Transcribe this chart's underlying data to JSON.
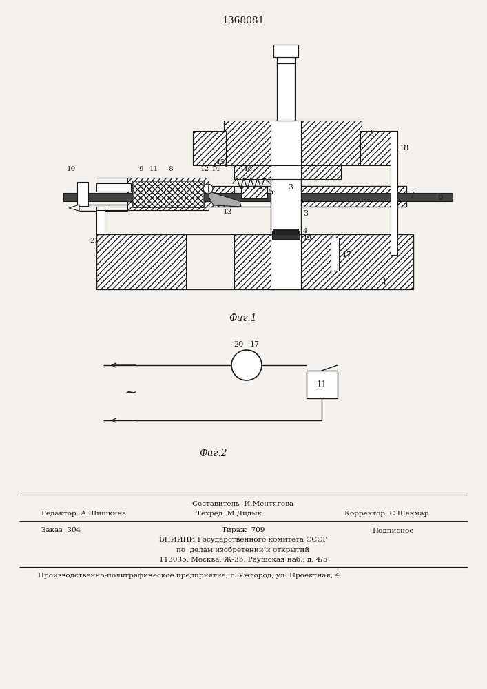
{
  "title": "1368081",
  "fig1_caption": "Фиг.1",
  "fig2_caption": "Фиг.2",
  "bg_color": "#f5f2ed",
  "line_color": "#1a1a1a",
  "footer_line1_center": "Составитель  И.Ментягова",
  "footer_line2_left": "Редактор  А.Шишкина",
  "footer_line2_center": "Техред  М.Дидык",
  "footer_line2_right": "Корректор  С.Шекмар",
  "footer_line3_left": "Заказ  304",
  "footer_line3_center": "Тираж  709",
  "footer_line3_right": "Подписное",
  "footer_line4": "ВНИИПИ Государственного комитета СССР",
  "footer_line5": "по  делам изобретений и открытий",
  "footer_line6": "113035, Москва, Ж-35, Раушская наб., д. 4/5",
  "footer_line7": "Производственно-полиграфическое предприятие, г. Ужгород, ул. Проектная, 4"
}
